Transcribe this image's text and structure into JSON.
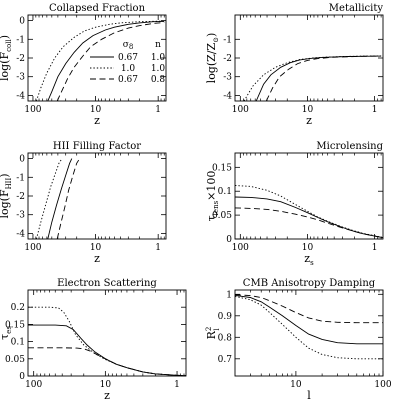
{
  "chart_data": [
    {
      "type": "line",
      "title": "Collapsed Fraction",
      "xlabel": "z",
      "ylabel": "log(F_coll)",
      "ylabel_parts": {
        "main": "log(F",
        "sub": "coll",
        "close": ")"
      },
      "xscale": "log",
      "xreversed": true,
      "xlim": [
        120,
        0.75
      ],
      "ylim": [
        -4.3,
        0.3
      ],
      "xticks": [
        {
          "v": 100,
          "label": "100"
        },
        {
          "v": 10,
          "label": "10"
        },
        {
          "v": 1,
          "label": "1"
        }
      ],
      "yticks": [
        {
          "v": 0,
          "label": "0"
        },
        {
          "v": -1,
          "label": "-1"
        },
        {
          "v": -2,
          "label": "-2"
        },
        {
          "v": -3,
          "label": "-3"
        },
        {
          "v": -4,
          "label": "-4"
        }
      ],
      "legend": {
        "position": "center-right",
        "header": {
          "sigma": "σ",
          "sigma_sub": "8",
          "n": "n"
        },
        "entries": [
          {
            "style": "solid",
            "sigma8": "0.67",
            "n": "1.0"
          },
          {
            "style": "dotted",
            "sigma8": "1.0",
            "n": "1.0"
          },
          {
            "style": "dashed",
            "sigma8": "0.67",
            "n": "0.8"
          }
        ]
      },
      "series": [
        {
          "style": "solid",
          "x": [
            58,
            50,
            40,
            30,
            22,
            16,
            11,
            7,
            5,
            3,
            2,
            1.2,
            0.8
          ],
          "y": [
            -4.3,
            -3.8,
            -3.0,
            -2.3,
            -1.7,
            -1.2,
            -0.8,
            -0.5,
            -0.35,
            -0.2,
            -0.12,
            -0.06,
            -0.04
          ]
        },
        {
          "style": "dotted",
          "x": [
            88,
            75,
            60,
            45,
            33,
            22,
            15,
            10,
            6,
            4,
            2,
            1,
            0.8
          ],
          "y": [
            -4.3,
            -3.6,
            -2.8,
            -2.0,
            -1.4,
            -0.9,
            -0.55,
            -0.35,
            -0.2,
            -0.12,
            -0.06,
            -0.03,
            -0.02
          ]
        },
        {
          "style": "dashed",
          "x": [
            41,
            35,
            28,
            22,
            16,
            12,
            8,
            5,
            3,
            2,
            1.2,
            0.8
          ],
          "y": [
            -4.3,
            -3.8,
            -3.1,
            -2.5,
            -1.9,
            -1.4,
            -1.0,
            -0.65,
            -0.4,
            -0.27,
            -0.15,
            -0.1
          ]
        }
      ]
    },
    {
      "type": "line",
      "title": "Metallicity",
      "xlabel": "z",
      "ylabel": "log(Z/Z_⊙)",
      "ylabel_parts": {
        "main": "log(Z/Z",
        "sub": "⊙",
        "close": ")"
      },
      "xscale": "log",
      "xreversed": true,
      "xlim": [
        120,
        0.75
      ],
      "ylim": [
        -4.3,
        0.3
      ],
      "xticks": [
        {
          "v": 100,
          "label": "100"
        },
        {
          "v": 10,
          "label": "10"
        },
        {
          "v": 1,
          "label": "1"
        }
      ],
      "yticks": [
        {
          "v": -1,
          "label": "-1"
        },
        {
          "v": -2,
          "label": "-2"
        },
        {
          "v": -3,
          "label": "-3"
        },
        {
          "v": -4,
          "label": "-4"
        }
      ],
      "series": [
        {
          "style": "solid",
          "x": [
            58,
            45,
            35,
            25,
            18,
            13,
            9,
            6,
            4,
            2.5,
            1.5,
            0.8
          ],
          "y": [
            -4.3,
            -3.4,
            -2.9,
            -2.5,
            -2.25,
            -2.1,
            -2.02,
            -1.97,
            -1.94,
            -1.92,
            -1.91,
            -1.9
          ]
        },
        {
          "style": "dotted",
          "x": [
            88,
            65,
            45,
            30,
            20,
            13,
            8,
            5,
            3,
            1.5,
            0.8
          ],
          "y": [
            -4.3,
            -3.5,
            -2.9,
            -2.5,
            -2.25,
            -2.08,
            -1.99,
            -1.95,
            -1.92,
            -1.9,
            -1.89
          ]
        },
        {
          "style": "dashed",
          "x": [
            41,
            33,
            26,
            19,
            14,
            10,
            7,
            4.5,
            3,
            1.5,
            0.8
          ],
          "y": [
            -4.3,
            -3.6,
            -3.0,
            -2.6,
            -2.3,
            -2.13,
            -2.03,
            -1.97,
            -1.94,
            -1.91,
            -1.9
          ]
        }
      ]
    },
    {
      "type": "line",
      "title": "HII Filling Factor",
      "xlabel": "z",
      "ylabel": "log(F_HII)",
      "ylabel_parts": {
        "main": "log(F",
        "sub": "HII",
        "close": ")"
      },
      "xscale": "log",
      "xreversed": true,
      "xlim": [
        120,
        0.75
      ],
      "ylim": [
        -4.3,
        0.3
      ],
      "xticks": [
        {
          "v": 100,
          "label": "100"
        },
        {
          "v": 10,
          "label": "10"
        },
        {
          "v": 1,
          "label": "1"
        }
      ],
      "yticks": [
        {
          "v": 0,
          "label": "0"
        },
        {
          "v": -1,
          "label": "-1"
        },
        {
          "v": -2,
          "label": "-2"
        },
        {
          "v": -3,
          "label": "-3"
        },
        {
          "v": -4,
          "label": "-4"
        }
      ],
      "series": [
        {
          "style": "solid",
          "x": [
            58,
            50,
            42,
            35,
            30,
            26,
            24
          ],
          "y": [
            -4.3,
            -3.4,
            -2.5,
            -1.6,
            -0.9,
            -0.25,
            0
          ]
        },
        {
          "style": "dotted",
          "x": [
            88,
            75,
            62,
            52,
            44,
            38,
            34
          ],
          "y": [
            -4.3,
            -3.4,
            -2.4,
            -1.5,
            -0.8,
            -0.2,
            0
          ]
        },
        {
          "style": "dashed",
          "x": [
            41,
            36,
            31,
            27,
            23,
            20,
            18
          ],
          "y": [
            -4.3,
            -3.5,
            -2.6,
            -1.7,
            -0.9,
            -0.25,
            0
          ]
        }
      ]
    },
    {
      "type": "line",
      "title": "Microlensing",
      "xlabel": "z_s",
      "xlabel_parts": {
        "main": "z",
        "sub": "s"
      },
      "ylabel": "τ_lens ×100",
      "ylabel_parts": {
        "main": "τ",
        "sub": "lens",
        "close": "×100"
      },
      "xscale": "log",
      "xreversed": true,
      "xlim": [
        120,
        0.75
      ],
      "ylim": [
        0,
        0.18
      ],
      "xticks": [
        {
          "v": 100,
          "label": "100"
        },
        {
          "v": 10,
          "label": "10"
        },
        {
          "v": 1,
          "label": "1"
        }
      ],
      "yticks": [
        {
          "v": 0,
          "label": "0"
        },
        {
          "v": 0.05,
          "label": "0.05"
        },
        {
          "v": 0.1,
          "label": "0.1"
        },
        {
          "v": 0.15,
          "label": "0.15"
        }
      ],
      "series": [
        {
          "style": "solid",
          "x": [
            120,
            70,
            40,
            25,
            15,
            10,
            7,
            5,
            3,
            2,
            1.5,
            1,
            0.75
          ],
          "y": [
            0.088,
            0.087,
            0.084,
            0.078,
            0.066,
            0.055,
            0.045,
            0.036,
            0.024,
            0.016,
            0.011,
            0.006,
            0.003
          ]
        },
        {
          "style": "dotted",
          "x": [
            120,
            70,
            40,
            25,
            15,
            10,
            7,
            5,
            3,
            2,
            1.5,
            1,
            0.75
          ],
          "y": [
            0.112,
            0.11,
            0.102,
            0.09,
            0.072,
            0.058,
            0.046,
            0.037,
            0.025,
            0.017,
            0.012,
            0.007,
            0.003
          ]
        },
        {
          "style": "dashed",
          "x": [
            120,
            70,
            40,
            25,
            15,
            10,
            7,
            5,
            3,
            2,
            1.5,
            1,
            0.75
          ],
          "y": [
            0.065,
            0.064,
            0.062,
            0.058,
            0.052,
            0.046,
            0.04,
            0.033,
            0.023,
            0.016,
            0.011,
            0.006,
            0.003
          ]
        }
      ]
    },
    {
      "type": "line",
      "title": "Electron Scattering",
      "xlabel": "z",
      "ylabel": "τ_es",
      "ylabel_parts": {
        "main": "τ",
        "sub": "es",
        "close": ""
      },
      "xscale": "log",
      "xreversed": true,
      "xlim": [
        120,
        0.75
      ],
      "ylim": [
        0,
        0.25
      ],
      "xticks": [
        {
          "v": 100,
          "label": "100"
        },
        {
          "v": 10,
          "label": "10"
        },
        {
          "v": 1,
          "label": "1"
        }
      ],
      "yticks": [
        {
          "v": 0,
          "label": "0"
        },
        {
          "v": 0.05,
          "label": "0.05"
        },
        {
          "v": 0.1,
          "label": "0.1"
        },
        {
          "v": 0.15,
          "label": "0.15"
        },
        {
          "v": 0.2,
          "label": "0.2"
        }
      ],
      "series": [
        {
          "style": "solid",
          "x": [
            120,
            50,
            35,
            28,
            22,
            18,
            14,
            10,
            7,
            5,
            3,
            2,
            1,
            0.75
          ],
          "y": [
            0.148,
            0.148,
            0.146,
            0.135,
            0.11,
            0.09,
            0.07,
            0.05,
            0.034,
            0.024,
            0.012,
            0.006,
            0.002,
            0.001
          ]
        },
        {
          "style": "dotted",
          "x": [
            120,
            60,
            45,
            38,
            32,
            26,
            20,
            14,
            10,
            7,
            5,
            3,
            2,
            1,
            0.75
          ],
          "y": [
            0.2,
            0.2,
            0.198,
            0.185,
            0.16,
            0.12,
            0.09,
            0.065,
            0.048,
            0.034,
            0.024,
            0.012,
            0.006,
            0.002,
            0.001
          ]
        },
        {
          "style": "dashed",
          "x": [
            120,
            40,
            25,
            20,
            16,
            13,
            10,
            7,
            5,
            3,
            2,
            1,
            0.75
          ],
          "y": [
            0.082,
            0.082,
            0.081,
            0.079,
            0.072,
            0.062,
            0.05,
            0.034,
            0.024,
            0.012,
            0.006,
            0.002,
            0.001
          ]
        }
      ]
    },
    {
      "type": "line",
      "title": "CMB Anisotropy Damping",
      "xlabel": "l",
      "ylabel": "R_l^2",
      "ylabel_parts": {
        "main": "R",
        "sub": "l",
        "sup": "2"
      },
      "xscale": "log",
      "xreversed": false,
      "xlim": [
        2,
        100
      ],
      "ylim": [
        0.62,
        1.02
      ],
      "xticks": [
        {
          "v": 10,
          "label": "10"
        },
        {
          "v": 100,
          "label": "100"
        }
      ],
      "yticks": [
        {
          "v": 0.7,
          "label": "0.7"
        },
        {
          "v": 0.8,
          "label": "0.8"
        },
        {
          "v": 0.9,
          "label": "0.9"
        },
        {
          "v": 1,
          "label": "1"
        }
      ],
      "series": [
        {
          "style": "solid",
          "x": [
            2,
            3,
            4,
            5,
            7,
            10,
            14,
            20,
            30,
            50,
            70,
            100
          ],
          "y": [
            0.995,
            0.985,
            0.965,
            0.94,
            0.9,
            0.855,
            0.815,
            0.79,
            0.775,
            0.77,
            0.77,
            0.77
          ]
        },
        {
          "style": "dotted",
          "x": [
            2,
            3,
            4,
            5,
            7,
            10,
            14,
            20,
            30,
            50,
            70,
            100
          ],
          "y": [
            0.99,
            0.975,
            0.95,
            0.915,
            0.86,
            0.8,
            0.75,
            0.72,
            0.705,
            0.7,
            0.7,
            0.7
          ]
        },
        {
          "style": "dashed",
          "x": [
            2,
            3,
            4,
            5,
            7,
            10,
            14,
            20,
            30,
            50,
            70,
            100
          ],
          "y": [
            0.998,
            0.994,
            0.985,
            0.97,
            0.945,
            0.915,
            0.89,
            0.875,
            0.87,
            0.868,
            0.868,
            0.868
          ]
        }
      ]
    }
  ]
}
